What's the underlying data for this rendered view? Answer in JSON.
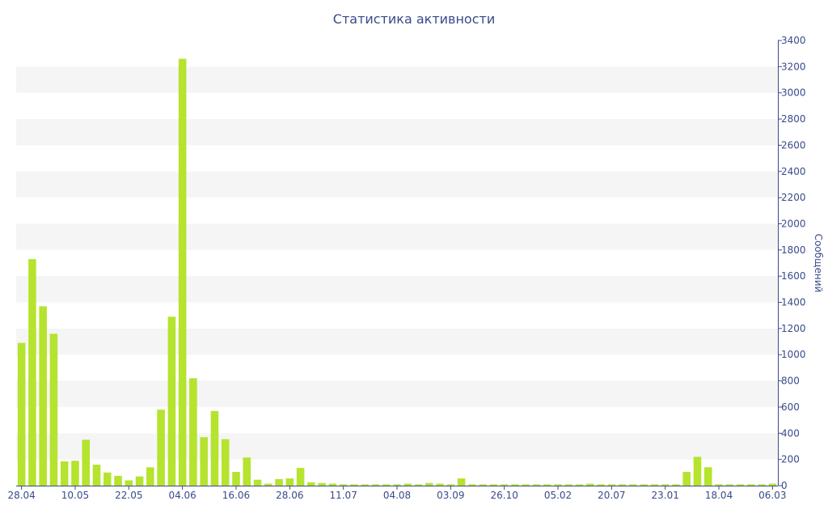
{
  "chart_data": {
    "type": "bar",
    "title": "Статистика активности",
    "xlabel": "",
    "ylabel": "Сообщений",
    "y_axis_side": "right",
    "ylim": [
      0,
      3400
    ],
    "yticks": [
      0,
      200,
      400,
      600,
      800,
      1000,
      1200,
      1400,
      1600,
      1800,
      2000,
      2200,
      2400,
      2600,
      2800,
      3000,
      3200,
      3400
    ],
    "grid": "alternating horizontal bands",
    "bar_color": "#b5e32e",
    "x_tick_labels": [
      {
        "index": 0,
        "label": "28.04"
      },
      {
        "index": 5,
        "label": "10.05"
      },
      {
        "index": 10,
        "label": "22.05"
      },
      {
        "index": 15,
        "label": "04.06"
      },
      {
        "index": 20,
        "label": "16.06"
      },
      {
        "index": 25,
        "label": "28.06"
      },
      {
        "index": 30,
        "label": "11.07"
      },
      {
        "index": 35,
        "label": "04.08"
      },
      {
        "index": 40,
        "label": "03.09"
      },
      {
        "index": 45,
        "label": "26.10"
      },
      {
        "index": 50,
        "label": "05.02"
      },
      {
        "index": 55,
        "label": "20.07"
      },
      {
        "index": 60,
        "label": "23.01"
      },
      {
        "index": 65,
        "label": "18.04"
      },
      {
        "index": 70,
        "label": "06.03"
      }
    ],
    "values": [
      1090,
      1730,
      1370,
      1160,
      185,
      190,
      350,
      160,
      100,
      75,
      40,
      70,
      140,
      580,
      1290,
      3260,
      820,
      370,
      570,
      355,
      105,
      215,
      45,
      15,
      50,
      55,
      135,
      25,
      20,
      15,
      10,
      10,
      10,
      10,
      10,
      10,
      15,
      10,
      20,
      15,
      10,
      55,
      10,
      10,
      10,
      10,
      10,
      10,
      10,
      10,
      10,
      10,
      10,
      15,
      10,
      10,
      10,
      10,
      10,
      10,
      10,
      10,
      105,
      220,
      140,
      10,
      10,
      10,
      10,
      10,
      15
    ]
  }
}
